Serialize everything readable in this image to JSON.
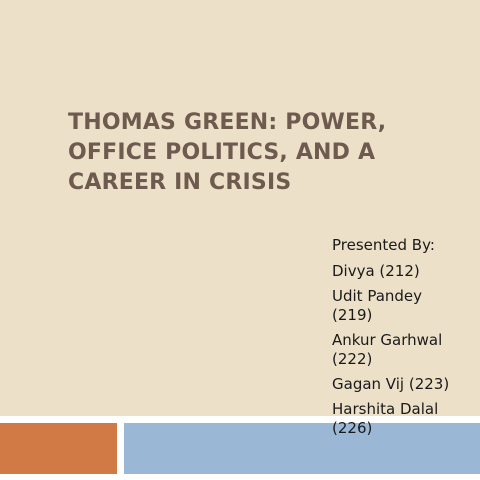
{
  "slide": {
    "title_lines": [
      "THOMAS GREEN: POWER,",
      "OFFICE POLITICS, AND A",
      "CAREER IN CRISIS"
    ],
    "presented_by": "Presented By:",
    "presenters": [
      {
        "lines": [
          "Divya (212)"
        ]
      },
      {
        "lines": [
          "Udit Pandey",
          "(219)"
        ]
      },
      {
        "lines": [
          "Ankur Garhwal",
          "(222)"
        ]
      },
      {
        "lines": [
          "Gagan Vij (223)"
        ]
      },
      {
        "lines": [
          "Harshita Dalal",
          "(226)"
        ]
      }
    ]
  },
  "colors": {
    "background": "#ece0c8",
    "title": "#6e5a4e",
    "accent_orange": "#d17a45",
    "accent_blue": "#9ab8d6"
  }
}
